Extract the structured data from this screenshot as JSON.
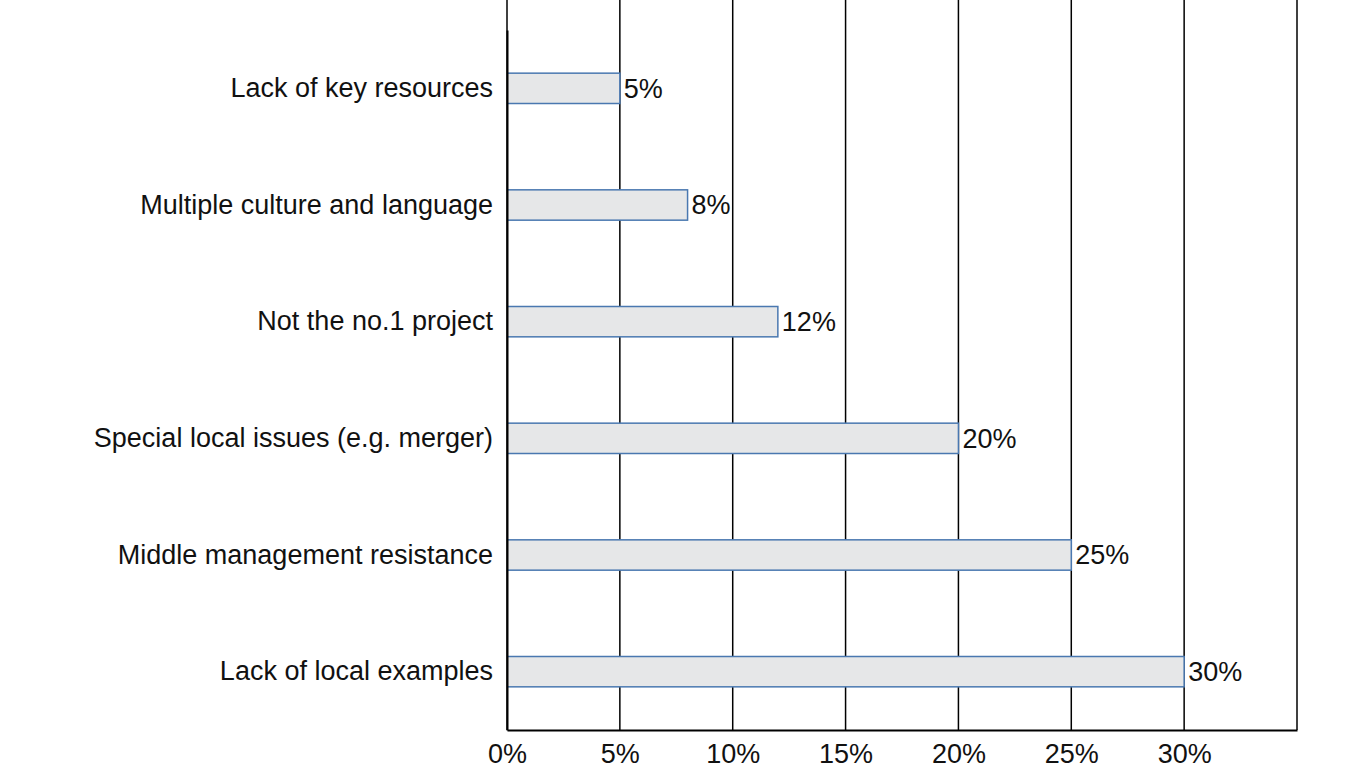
{
  "chart_data": {
    "type": "bar",
    "orientation": "horizontal",
    "categories": [
      "Lack of key resources",
      "Multiple culture and language",
      "Not the no.1 project",
      "Special local issues (e.g. merger)",
      "Middle management resistance",
      "Lack of local examples"
    ],
    "values": [
      5,
      8,
      12,
      20,
      25,
      30
    ],
    "value_labels": [
      "5%",
      "8%",
      "12%",
      "20%",
      "25%",
      "30%"
    ],
    "data_labels": true,
    "color": "#e6e7e8",
    "xlim": [
      0,
      35
    ],
    "xticks": [
      {
        "value": 0,
        "label": "0%"
      },
      {
        "value": 5,
        "label": "5%"
      },
      {
        "value": 10,
        "label": "10%"
      },
      {
        "value": 15,
        "label": "15%"
      },
      {
        "value": 20,
        "label": "20%"
      },
      {
        "value": 25,
        "label": "25%"
      },
      {
        "value": 30,
        "label": "30%"
      }
    ],
    "grid": true
  }
}
